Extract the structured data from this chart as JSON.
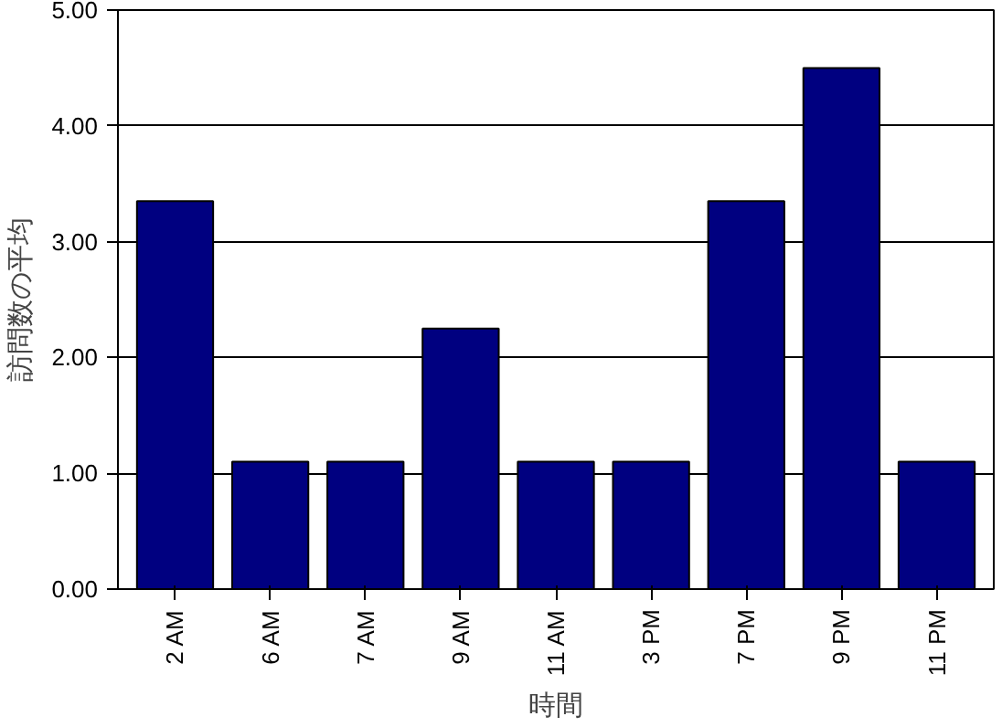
{
  "chart_data": {
    "type": "bar",
    "xlabel": "時間",
    "ylabel": "訪問数の平均",
    "categories": [
      "2 AM",
      "6 AM",
      "7 AM",
      "9 AM",
      "11 AM",
      "3 PM",
      "7 PM",
      "9 PM",
      "11 PM"
    ],
    "values": [
      3.35,
      1.1,
      1.1,
      2.25,
      1.1,
      1.1,
      3.35,
      4.5,
      1.1
    ],
    "color": "#000080",
    "ylim": [
      0,
      5
    ],
    "yticks": [
      {
        "value": 0,
        "label": "0.00"
      },
      {
        "value": 1,
        "label": "1.00"
      },
      {
        "value": 2,
        "label": "2.00"
      },
      {
        "value": 3,
        "label": "3.00"
      },
      {
        "value": 4,
        "label": "4.00"
      },
      {
        "value": 5,
        "label": "5.00"
      }
    ],
    "grid": "y"
  }
}
